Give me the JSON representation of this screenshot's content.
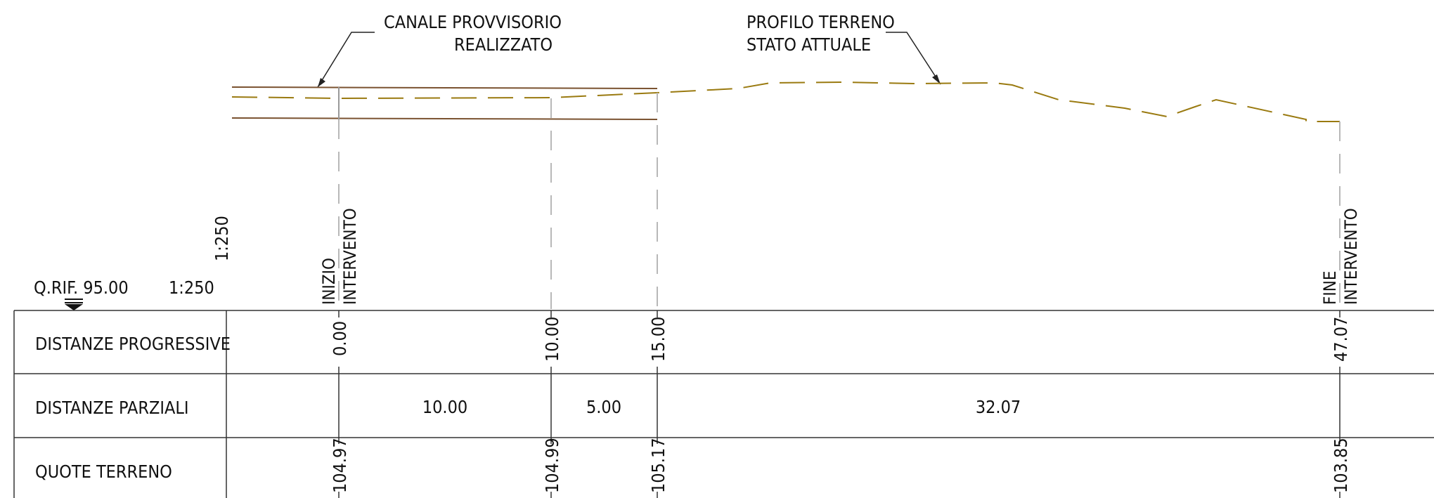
{
  "reference": {
    "quota_rif": "Q.RIF. 95.00",
    "scale_horizontal": "1:250",
    "scale_vertical": "1:250"
  },
  "annotations": {
    "canale_line1": "CANALE PROVVISORIO",
    "canale_line2": "REALIZZATO",
    "profilo_line1": "PROFILO TERRENO",
    "profilo_line2": "STATO ATTUALE"
  },
  "markers": {
    "start_line1": "INIZIO",
    "start_line2": "INTERVENTO",
    "end_line1": "FINE",
    "end_line2": "INTERVENTO"
  },
  "table": {
    "rows": [
      {
        "label": "DISTANZE PROGRESSIVE"
      },
      {
        "label": "DISTANZE PARZIALI"
      },
      {
        "label": "QUOTE TERRENO"
      }
    ],
    "stations": [
      {
        "progressive": "0.00",
        "quota": "104.97"
      },
      {
        "progressive": "10.00",
        "quota": "104.99"
      },
      {
        "progressive": "15.00",
        "quota": "105.17"
      },
      {
        "progressive": "47.07",
        "quota": "103.85"
      }
    ],
    "partials": [
      "10.00",
      "5.00",
      "32.07"
    ]
  },
  "colors": {
    "terrain": "#9a7a10",
    "channel": "#7a5230",
    "dashed_vertical": "#b8b8b8",
    "table_lines": "#333333"
  }
}
